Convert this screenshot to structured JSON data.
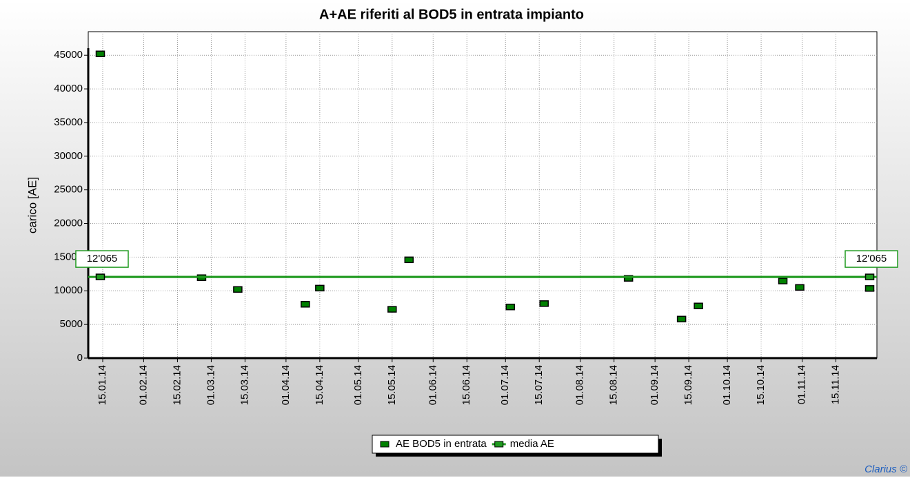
{
  "chart_data": {
    "type": "scatter",
    "title": "A+AE riferiti al BOD5 in entrata impianto",
    "y_label": "carico [AE]",
    "footer": "Clarius ©",
    "xlim": [
      "09.01.14",
      "02.12.14"
    ],
    "xticks": [
      "15.01.14",
      "01.02.14",
      "15.02.14",
      "01.03.14",
      "15.03.14",
      "01.04.14",
      "15.04.14",
      "01.05.14",
      "15.05.14",
      "01.06.14",
      "15.06.14",
      "01.07.14",
      "15.07.14",
      "01.08.14",
      "15.08.14",
      "01.09.14",
      "15.09.14",
      "01.10.14",
      "15.10.14",
      "01.11.14",
      "15.11.14"
    ],
    "ylim": [
      0,
      48500
    ],
    "yticks": [
      0,
      5000,
      10000,
      15000,
      20000,
      25000,
      30000,
      35000,
      40000,
      45000
    ],
    "grid": true,
    "legend": "bottom",
    "series": [
      {
        "name": "AE BOD5 in entrata",
        "color": "#008000",
        "x": [
          "14.01.14",
          "25.02.14",
          "12.03.14",
          "09.04.14",
          "15.04.14",
          "15.05.14",
          "22.05.14",
          "03.07.14",
          "17.07.14",
          "21.08.14",
          "12.09.14",
          "19.09.14",
          "24.10.14",
          "31.10.14",
          "29.11.14"
        ],
        "values": [
          45200,
          11950,
          10200,
          8000,
          10400,
          7250,
          14600,
          7600,
          8100,
          11850,
          5800,
          7750,
          11450,
          10500,
          10350
        ]
      },
      {
        "name": "media AE",
        "color": "#1f9a1f",
        "line": true,
        "x": [
          "14.01.14",
          "29.11.14"
        ],
        "values": [
          12065,
          12065
        ],
        "value_labels": [
          "12'065",
          "12'065"
        ]
      }
    ]
  }
}
